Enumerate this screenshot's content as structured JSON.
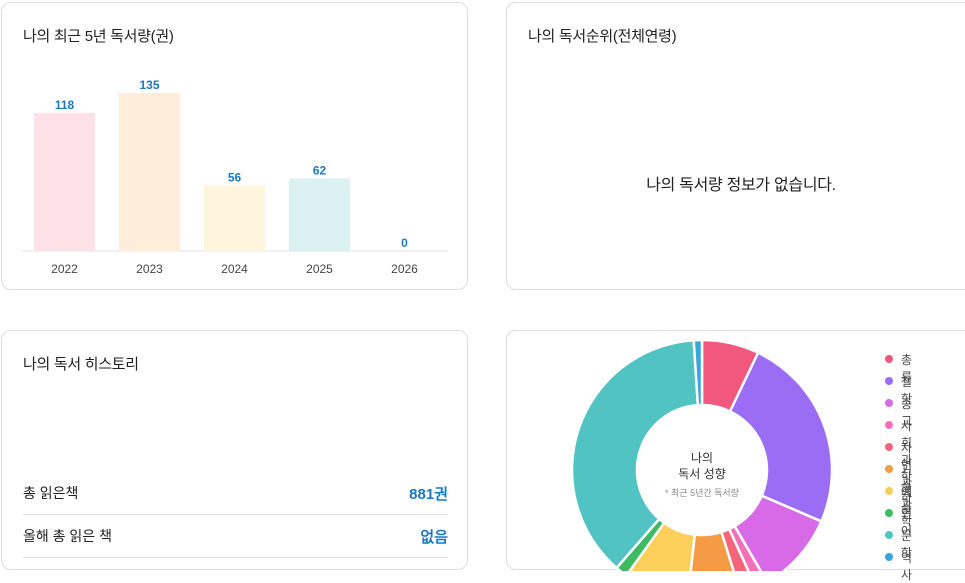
{
  "recent_reading": {
    "title": "나의 최근 5년 독서량(권)",
    "chart_data": {
      "type": "bar",
      "categories": [
        "2022",
        "2023",
        "2024",
        "2025",
        "2026"
      ],
      "values": [
        118,
        135,
        56,
        62,
        0
      ],
      "colors": [
        "#ffe1e8",
        "#ffeddc",
        "#fff4dc",
        "#dbf1f1",
        "#eef2f8"
      ],
      "label_color": "#1a78c2"
    }
  },
  "ranking": {
    "title": "나의 독서순위(전체연령)",
    "empty_message": "나의 독서량 정보가 없습니다."
  },
  "history": {
    "title": "나의 독서 히스토리",
    "stats": [
      {
        "label": "총 읽은책",
        "value": "881권"
      },
      {
        "label": "올해 총 읽은 책",
        "value": "없음"
      }
    ]
  },
  "tendency": {
    "center_line1": "나의",
    "center_line2": "독서 성향",
    "center_note": "* 최근 5년간 독서량",
    "chart_data": {
      "type": "pie",
      "categories": [
        "총류",
        "철학",
        "종교",
        "사회과학",
        "자연과학",
        "기술과학",
        "예술",
        "언어",
        "문학",
        "역사"
      ],
      "colors": [
        "#f2577e",
        "#9b6cf4",
        "#d86ae8",
        "#f570b8",
        "#f56478",
        "#f59a45",
        "#fbcf5a",
        "#3dbb62",
        "#52c3c3",
        "#3aa4e2"
      ],
      "values": [
        7,
        24,
        10,
        1.5,
        2,
        6.5,
        8,
        1.5,
        37,
        1
      ]
    }
  }
}
